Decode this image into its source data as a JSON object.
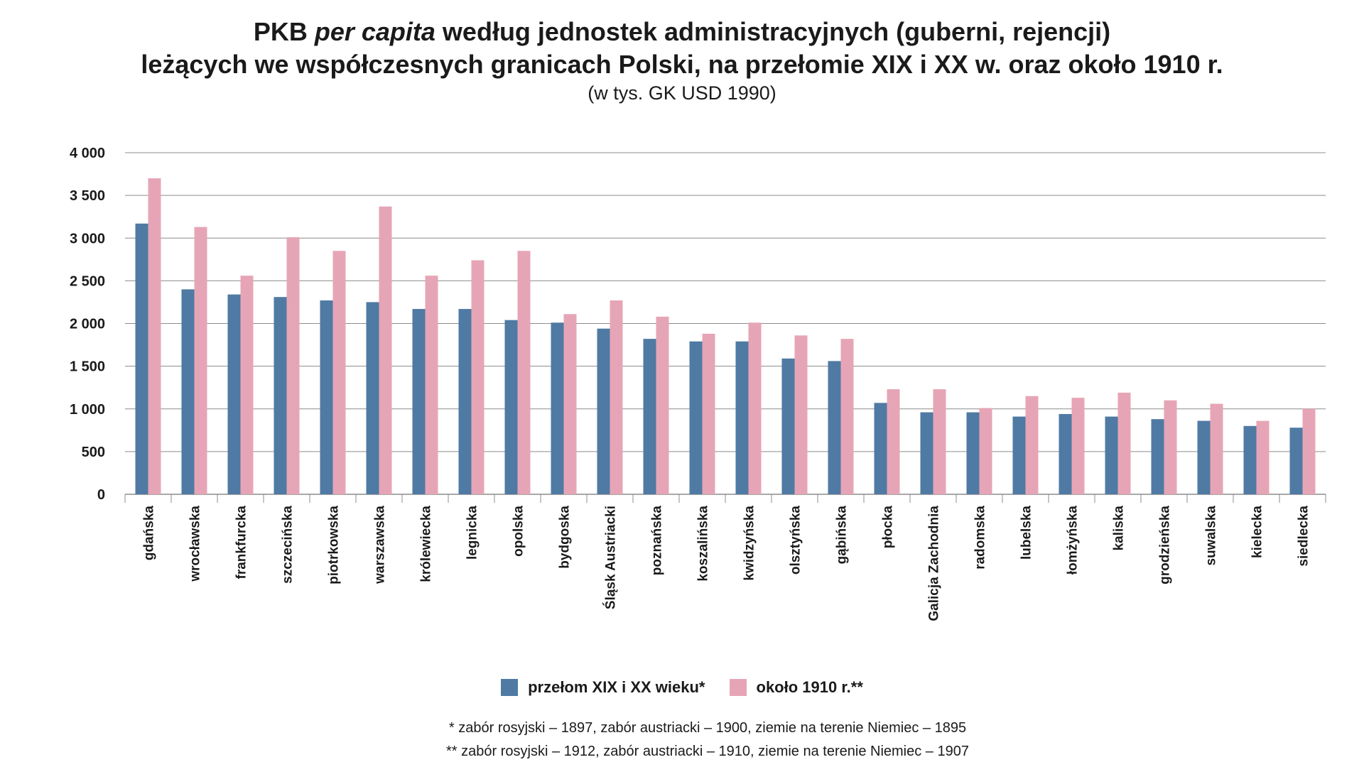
{
  "title_part1": "PKB ",
  "title_italic": "per capita",
  "title_part2": " według jednostek administracyjnych (guberni, rejencji)",
  "title_line2": "leżących we współczesnych granicach Polski, na przełomie XIX i XX w. oraz około 1910 r.",
  "subtitle": "(w tys. GK USD 1990)",
  "colors": {
    "series1": "#4f7aa3",
    "series2": "#e6a5b6",
    "grid": "#8c8c8c",
    "axis": "#8c8c8c"
  },
  "chart_data": {
    "type": "bar",
    "title": "PKB per capita według jednostek administracyjnych (guberni, rejencji) leżących we współczesnych granicach Polski, na przełomie XIX i XX w. oraz około 1910 r.",
    "subtitle": "(w tys. GK USD 1990)",
    "xlabel": "",
    "ylabel": "",
    "ylim": [
      0,
      4000
    ],
    "yticks": [
      0,
      500,
      1000,
      1500,
      2000,
      2500,
      3000,
      3500,
      4000
    ],
    "ytick_labels": [
      "0",
      "500",
      "1 000",
      "1 500",
      "2 000",
      "2 500",
      "3 000",
      "3 500",
      "4 000"
    ],
    "grid": true,
    "legend_position": "bottom",
    "categories": [
      "gdańska",
      "wrocławska",
      "frankfurcka",
      "szczecińska",
      "piotrkowska",
      "warszawska",
      "królewiecka",
      "legnicka",
      "opolska",
      "bydgoska",
      "Śląsk Austriacki",
      "poznańska",
      "koszalińska",
      "kwidzyńska",
      "olsztyńska",
      "gąbińska",
      "płocka",
      "Galicja Zachodnia",
      "radomska",
      "lubelska",
      "łomżyńska",
      "kaliska",
      "grodzieńska",
      "suwalska",
      "kielecka",
      "siedlecka"
    ],
    "series": [
      {
        "name": "przełom XIX i XX wieku*",
        "values": [
          3170,
          2400,
          2340,
          2310,
          2270,
          2250,
          2170,
          2170,
          2040,
          2010,
          1940,
          1820,
          1790,
          1790,
          1590,
          1560,
          1070,
          960,
          960,
          910,
          940,
          910,
          880,
          860,
          800,
          780
        ]
      },
      {
        "name": "około 1910 r.**",
        "values": [
          3700,
          3130,
          2560,
          3010,
          2850,
          3370,
          2560,
          2740,
          2850,
          2110,
          2270,
          2080,
          1880,
          2010,
          1860,
          1820,
          1230,
          1230,
          1010,
          1150,
          1130,
          1190,
          1100,
          1060,
          860,
          1000
        ]
      }
    ]
  },
  "notes": [
    "* zabór rosyjski – 1897, zabór austriacki – 1900, ziemie na terenie Niemiec – 1895",
    "** zabór rosyjski – 1912, zabór austriacki – 1910, ziemie na terenie Niemiec – 1907"
  ]
}
